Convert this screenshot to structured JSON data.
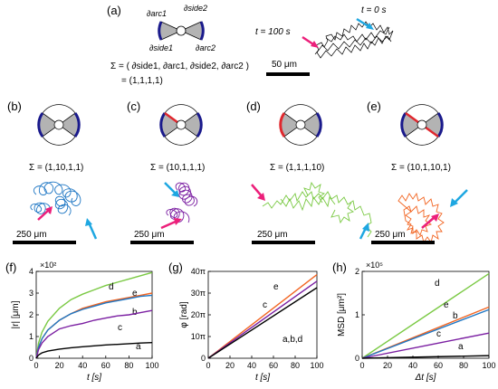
{
  "figure": {
    "panel_labels": [
      "(a)",
      "(b)",
      "(c)",
      "(d)",
      "(e)",
      "(f)",
      "(g)",
      "(h)"
    ],
    "panel_a": {
      "labels": {
        "arc1": "∂arc1",
        "side2": "∂side2",
        "side1": "∂side1",
        "arc2": "∂arc2"
      },
      "sigma_line1": "Σ = ( ∂side1, ∂arc1, ∂side2, ∂arc2 )",
      "sigma_line2": "= (1,1,1,1)",
      "t100": "t = 100 s",
      "t0": "t = 0 s",
      "scalebar": "50 μm"
    },
    "particles": [
      {
        "id": "b",
        "sigma": "Σ = (1,10,1,1)",
        "scalebar": "250 μm",
        "color": "#1f77c4"
      },
      {
        "id": "c",
        "sigma": "Σ = (10,1,1,1)",
        "scalebar": "250 μm",
        "color": "#7b1fa2"
      },
      {
        "id": "d",
        "sigma": "Σ = (1,1,1,10)",
        "scalebar": "250 μm",
        "color": "#7ac943"
      },
      {
        "id": "e",
        "sigma": "Σ = (10,1,10,1)",
        "scalebar": "250 μm",
        "color": "#f26522"
      }
    ],
    "colors": {
      "blue_edge": "#1a1a8c",
      "red_edge": "#e0282e",
      "gray_fill": "#b3b3b3",
      "pink_arrow": "#ec1f7a",
      "cyan_arrow": "#1ea7e1"
    }
  },
  "chart_data": [
    {
      "type": "line",
      "panel": "(f)",
      "multiplier": "×10²",
      "xlabel": "t [s]",
      "ylabel": "|r| [μm]",
      "xlim": [
        0,
        100
      ],
      "ylim": [
        0,
        4
      ],
      "x_ticks": [
        "0",
        "20",
        "40",
        "60",
        "80",
        "100"
      ],
      "y_ticks": [
        "0",
        "1",
        "2",
        "3",
        "4"
      ],
      "x": [
        0,
        2,
        5,
        10,
        20,
        30,
        40,
        50,
        60,
        70,
        80,
        90,
        100
      ],
      "series": [
        {
          "name": "d",
          "color": "#7ac943",
          "values": [
            0,
            0.7,
            1.2,
            1.7,
            2.3,
            2.7,
            2.95,
            3.15,
            3.35,
            3.5,
            3.65,
            3.8,
            3.95
          ]
        },
        {
          "name": "e",
          "color": "#f26522",
          "values": [
            0,
            0.5,
            0.9,
            1.3,
            1.75,
            2.05,
            2.3,
            2.45,
            2.6,
            2.7,
            2.8,
            2.9,
            3.0
          ]
        },
        {
          "name": "b",
          "color": "#1f77c4",
          "values": [
            0,
            0.5,
            0.9,
            1.3,
            1.75,
            2.05,
            2.25,
            2.4,
            2.55,
            2.65,
            2.75,
            2.85,
            2.9
          ]
        },
        {
          "name": "c",
          "color": "#7b1fa2",
          "values": [
            0,
            0.4,
            0.7,
            1.0,
            1.35,
            1.5,
            1.6,
            1.75,
            1.85,
            1.95,
            2.0,
            2.1,
            2.2
          ]
        },
        {
          "name": "a",
          "color": "#000000",
          "values": [
            0,
            0.15,
            0.25,
            0.33,
            0.42,
            0.48,
            0.53,
            0.57,
            0.61,
            0.64,
            0.67,
            0.7,
            0.72
          ]
        }
      ]
    },
    {
      "type": "line",
      "panel": "(g)",
      "xlabel": "t [s]",
      "ylabel": "φ [rad]",
      "xlim": [
        0,
        100
      ],
      "ylim": [
        0,
        40
      ],
      "x_ticks": [
        "0",
        "20",
        "40",
        "60",
        "80",
        "100"
      ],
      "y_ticks": [
        "0",
        "10π",
        "20π",
        "30π",
        "40π"
      ],
      "x": [
        0,
        100
      ],
      "series": [
        {
          "name": "e",
          "color": "#f26522",
          "values": [
            0,
            38.5
          ]
        },
        {
          "name": "c",
          "color": "#7b1fa2",
          "values": [
            0,
            35.5
          ]
        },
        {
          "name": "a,b,d",
          "color": "#000000",
          "values": [
            0,
            32.5
          ]
        }
      ]
    },
    {
      "type": "line",
      "panel": "(h)",
      "multiplier": "×10⁵",
      "xlabel": "Δt [s]",
      "ylabel": "MSD [μm²]",
      "xlim": [
        0,
        100
      ],
      "ylim": [
        0,
        2
      ],
      "x_ticks": [
        "0",
        "20",
        "40",
        "60",
        "80",
        "100"
      ],
      "y_ticks": [
        "0",
        "1",
        "2"
      ],
      "x": [
        0,
        100
      ],
      "series": [
        {
          "name": "d",
          "color": "#7ac943",
          "values": [
            0,
            1.95
          ]
        },
        {
          "name": "e",
          "color": "#f26522",
          "values": [
            0,
            1.18
          ]
        },
        {
          "name": "b",
          "color": "#1f77c4",
          "values": [
            0,
            1.12
          ]
        },
        {
          "name": "c",
          "color": "#7b1fa2",
          "values": [
            0,
            0.58
          ]
        },
        {
          "name": "a",
          "color": "#000000",
          "values": [
            0,
            0.06
          ]
        }
      ]
    }
  ]
}
